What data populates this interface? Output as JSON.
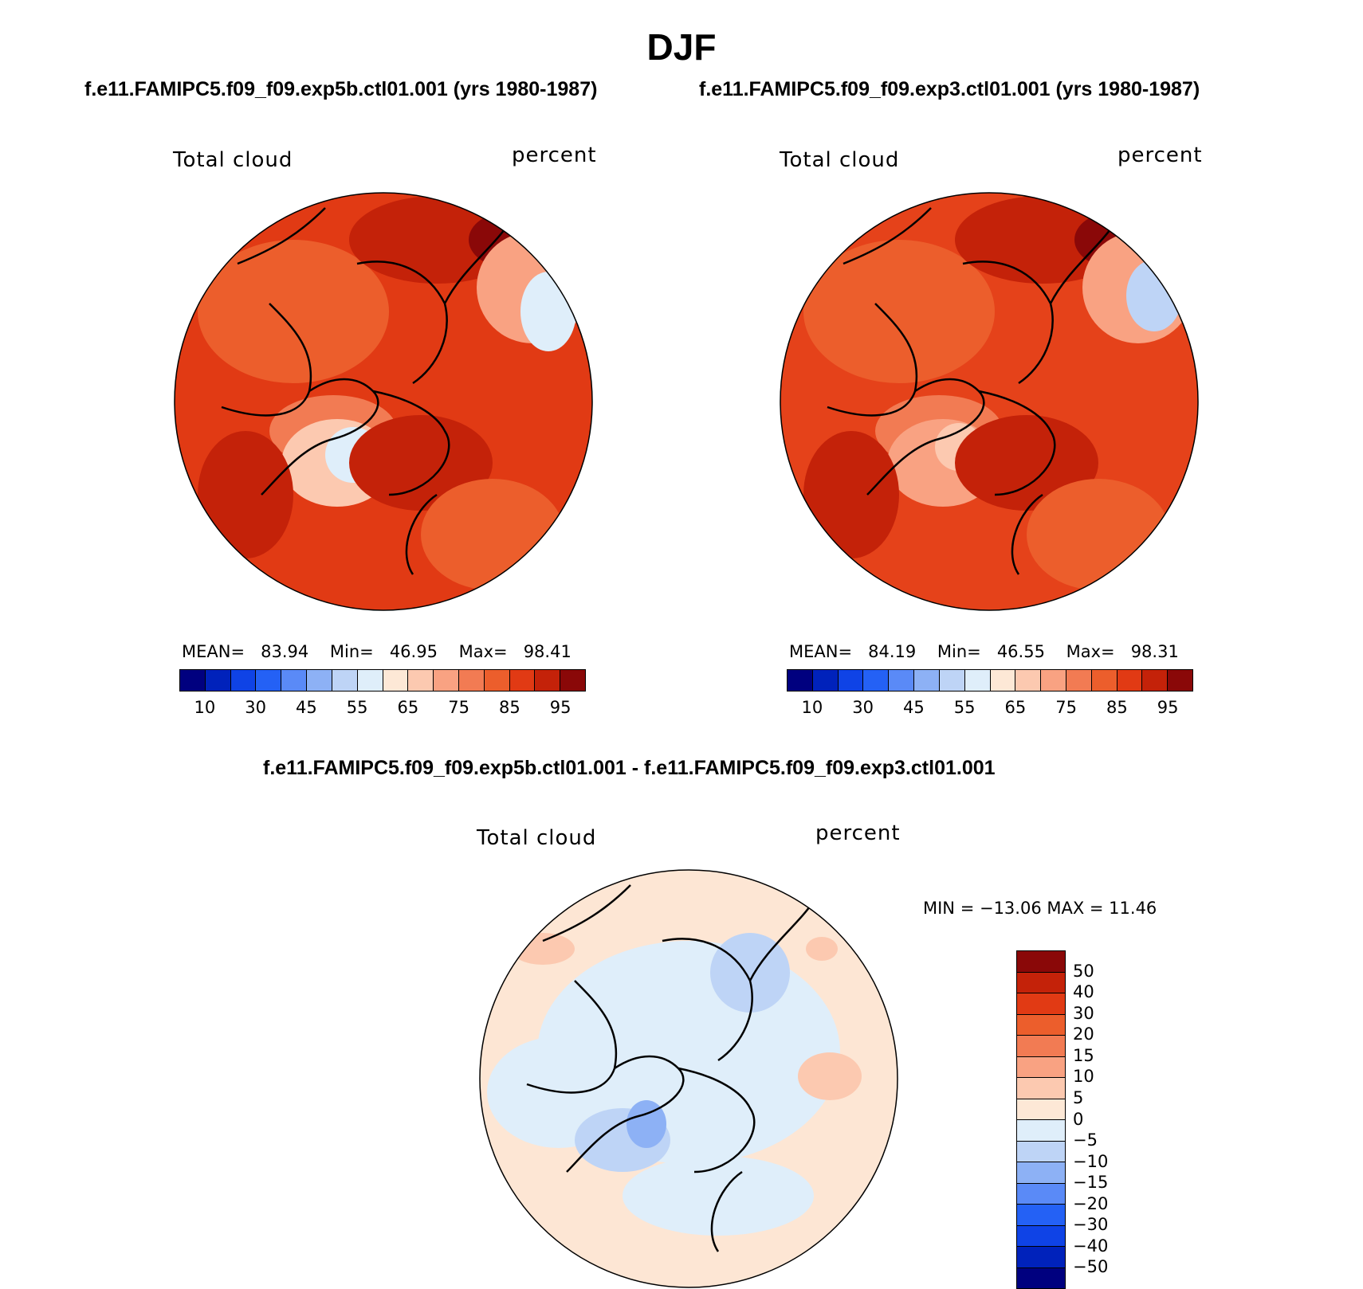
{
  "title": "DJF",
  "panels": [
    {
      "subtitle": "f.e11.FAMIPC5.f09_f09.exp5b.ctl01.001 (yrs 1980-1987)",
      "left_label": "Total cloud",
      "right_label": "percent",
      "stats": {
        "mean_label": "MEAN=",
        "mean": "83.94",
        "min_label": "Min=",
        "min": "46.95",
        "max_label": "Max=",
        "max": "98.41"
      },
      "base_color": "#e13a14",
      "colorbar": {
        "colors": [
          "#00007f",
          "#0022bb",
          "#0f43e6",
          "#2461f5",
          "#5a8af7",
          "#8db1f5",
          "#bed4f6",
          "#dfeefa",
          "#fde8d6",
          "#fcc9b0",
          "#f9a282",
          "#f27b53",
          "#ec5e2c",
          "#e13a14",
          "#c42209",
          "#8a0808"
        ],
        "ticks": [
          "10",
          "30",
          "45",
          "55",
          "65",
          "75",
          "85",
          "95"
        ]
      }
    },
    {
      "subtitle": "f.e11.FAMIPC5.f09_f09.exp3.ctl01.001 (yrs 1980-1987)",
      "left_label": "Total cloud",
      "right_label": "percent",
      "stats": {
        "mean_label": "MEAN=",
        "mean": "84.19",
        "min_label": "Min=",
        "min": "46.55",
        "max_label": "Max=",
        "max": "98.31"
      },
      "base_color": "#e5421a",
      "colorbar": {
        "colors": [
          "#00007f",
          "#0022bb",
          "#0f43e6",
          "#2461f5",
          "#5a8af7",
          "#8db1f5",
          "#bed4f6",
          "#dfeefa",
          "#fde8d6",
          "#fcc9b0",
          "#f9a282",
          "#f27b53",
          "#ec5e2c",
          "#e13a14",
          "#c42209",
          "#8a0808"
        ],
        "ticks": [
          "10",
          "30",
          "45",
          "55",
          "65",
          "75",
          "85",
          "95"
        ]
      }
    }
  ],
  "diff_panel": {
    "subtitle": "f.e11.FAMIPC5.f09_f09.exp5b.ctl01.001 - f.e11.FAMIPC5.f09_f09.exp3.ctl01.001",
    "left_label": "Total cloud",
    "right_label": "percent",
    "minmax": "MIN = −13.06 MAX =   11.46",
    "base_color": "#fde6d4",
    "colorbar": {
      "colors": [
        "#8a0808",
        "#c42209",
        "#e13a14",
        "#ec5e2c",
        "#f27b53",
        "#f9a282",
        "#fcc9b0",
        "#fde8d6",
        "#dfeefa",
        "#bed4f6",
        "#8db1f5",
        "#5a8af7",
        "#2461f5",
        "#0f43e6",
        "#0022bb",
        "#00007f"
      ],
      "ticks": [
        "50",
        "40",
        "30",
        "20",
        "15",
        "10",
        "5",
        "0",
        "−5",
        "−10",
        "−15",
        "−20",
        "−30",
        "−40",
        "−50"
      ]
    }
  }
}
